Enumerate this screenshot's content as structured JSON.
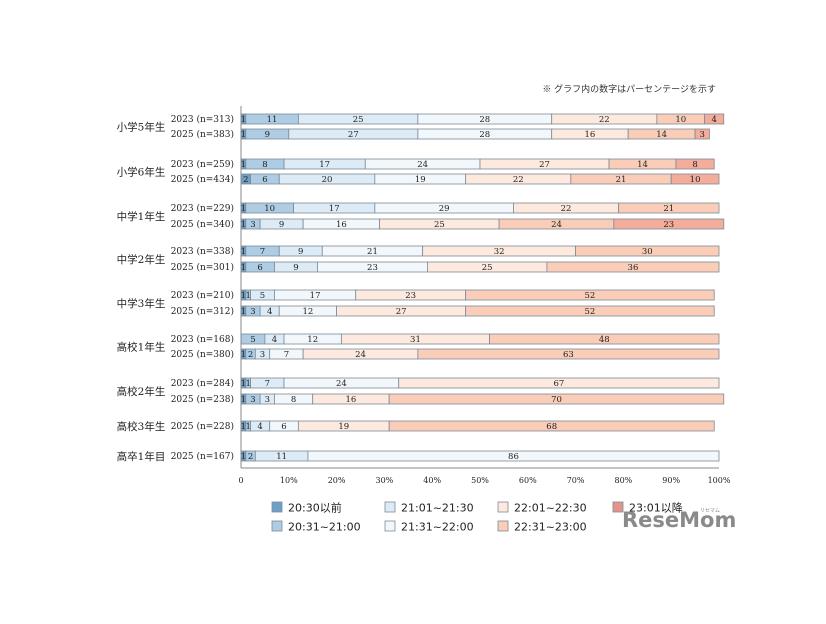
{
  "note": "※ グラフ内の数字はパーセンテージを示す",
  "logo": {
    "text": "ReseMom",
    "sub": "リセマム"
  },
  "colors": [
    "#6e9fc6",
    "#aecde4",
    "#dcebf5",
    "#f1f7fb",
    "#fde9de",
    "#f9cdb8",
    "#f3ad9a",
    "#e5948a"
  ],
  "chart_data": {
    "type": "bar",
    "stacked": true,
    "orientation": "horizontal",
    "xlim": [
      0,
      100
    ],
    "xticks": [
      "0",
      "10%",
      "20%",
      "30%",
      "40%",
      "50%",
      "60%",
      "70%",
      "80%",
      "90%",
      "100%"
    ],
    "series_names": [
      "20:30以前",
      "20:31~21:00",
      "21:01~21:30",
      "21:31~22:00",
      "22:01~22:30",
      "22:31~23:00",
      "23:01以降"
    ],
    "legend": [
      {
        "name": "20:30以前",
        "color": "#6e9fc6"
      },
      {
        "name": "21:01~21:30",
        "color": "#dcebf5"
      },
      {
        "name": "22:01~22:30",
        "color": "#fde9de"
      },
      {
        "name": "23:01以降",
        "color": "#e5948a"
      },
      {
        "name": "20:31~21:00",
        "color": "#aecde4"
      },
      {
        "name": "21:31~22:00",
        "color": "#f1f7fb"
      },
      {
        "name": "22:31~23:00",
        "color": "#f9cdb8"
      }
    ],
    "groups": [
      {
        "grade": "小学5年生",
        "rows": [
          {
            "label": "2023 (n=313)",
            "values": [
              1,
              11,
              25,
              28,
              22,
              10,
              4
            ]
          },
          {
            "label": "2025 (n=383)",
            "values": [
              1,
              9,
              27,
              28,
              16,
              14,
              3
            ]
          }
        ]
      },
      {
        "grade": "小学6年生",
        "rows": [
          {
            "label": "2023 (n=259)",
            "values": [
              1,
              8,
              17,
              24,
              27,
              14,
              8
            ]
          },
          {
            "label": "2025 (n=434)",
            "values": [
              2,
              6,
              20,
              19,
              22,
              21,
              10
            ]
          }
        ]
      },
      {
        "grade": "中学1年生",
        "rows": [
          {
            "label": "2023 (n=229)",
            "values": [
              1,
              10,
              17,
              29,
              22,
              21,
              0
            ]
          },
          {
            "label": "2025 (n=340)",
            "values": [
              1,
              3,
              9,
              16,
              25,
              24,
              23
            ]
          }
        ]
      },
      {
        "grade": "中学2年生",
        "rows": [
          {
            "label": "2023 (n=338)",
            "values": [
              1,
              7,
              9,
              21,
              32,
              30,
              0
            ]
          },
          {
            "label": "2025 (n=301)",
            "values": [
              1,
              6,
              9,
              23,
              25,
              36,
              0
            ]
          }
        ]
      },
      {
        "grade": "中学3年生",
        "rows": [
          {
            "label": "2023 (n=210)",
            "values": [
              1,
              1,
              5,
              17,
              23,
              52,
              0
            ]
          },
          {
            "label": "2025 (n=312)",
            "values": [
              1,
              3,
              4,
              12,
              27,
              52,
              0
            ]
          }
        ]
      },
      {
        "grade": "高校1年生",
        "rows": [
          {
            "label": "2023 (n=168)",
            "values": [
              0,
              5,
              4,
              12,
              31,
              48,
              0
            ]
          },
          {
            "label": "2025 (n=380)",
            "values": [
              1,
              2,
              3,
              7,
              24,
              63,
              0
            ]
          }
        ]
      },
      {
        "grade": "高校2年生",
        "rows": [
          {
            "label": "2023 (n=284)",
            "values": [
              1,
              1,
              7,
              24,
              67,
              0,
              0
            ]
          },
          {
            "label": "2025 (n=238)",
            "values": [
              1,
              3,
              3,
              8,
              16,
              70,
              0
            ]
          }
        ]
      },
      {
        "grade": "高校3年生",
        "rows": [
          {
            "label": "2025 (n=228)",
            "values": [
              1,
              1,
              4,
              6,
              19,
              68,
              0
            ]
          }
        ]
      },
      {
        "grade": "高卒1年目",
        "rows": [
          {
            "label": "2025 (n=167)",
            "values": [
              1,
              2,
              11,
              86,
              0,
              0,
              0
            ]
          }
        ]
      }
    ]
  }
}
